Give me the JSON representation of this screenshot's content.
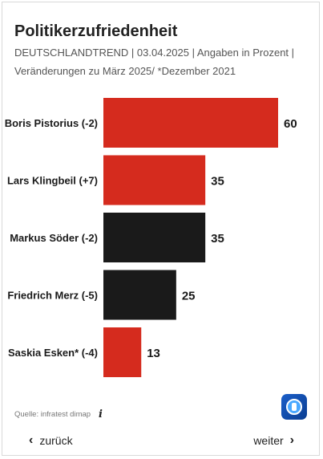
{
  "title": "Politikerzufriedenheit",
  "subtitle_line1": "DEUTSCHLANDTREND | 03.04.2025 | Angaben in Prozent |",
  "subtitle_line2": "Veränderungen zu März 2025/ *Dezember 2021",
  "chart_data": {
    "type": "bar",
    "orientation": "horizontal",
    "xlim": [
      0,
      60
    ],
    "grid": false,
    "categories": [
      "Boris Pistorius (-2)",
      "Lars Klingbeil (+7)",
      "Markus Söder (-2)",
      "Friedrich Merz (-5)",
      "Saskia Esken* (-4)"
    ],
    "values": [
      60,
      35,
      35,
      25,
      13
    ],
    "colors": [
      "#d52b1e",
      "#d52b1e",
      "#1a1a1a",
      "#1a1a1a",
      "#d52b1e"
    ],
    "value_labels": [
      "60",
      "35",
      "35",
      "25",
      "13"
    ]
  },
  "source": "Quelle: infratest dimap",
  "info_icon": "info-icon",
  "logo": "tagesschau-logo",
  "nav": {
    "prev_label": "zurück",
    "next_label": "weiter",
    "prev_icon": "‹",
    "next_icon": "›"
  }
}
